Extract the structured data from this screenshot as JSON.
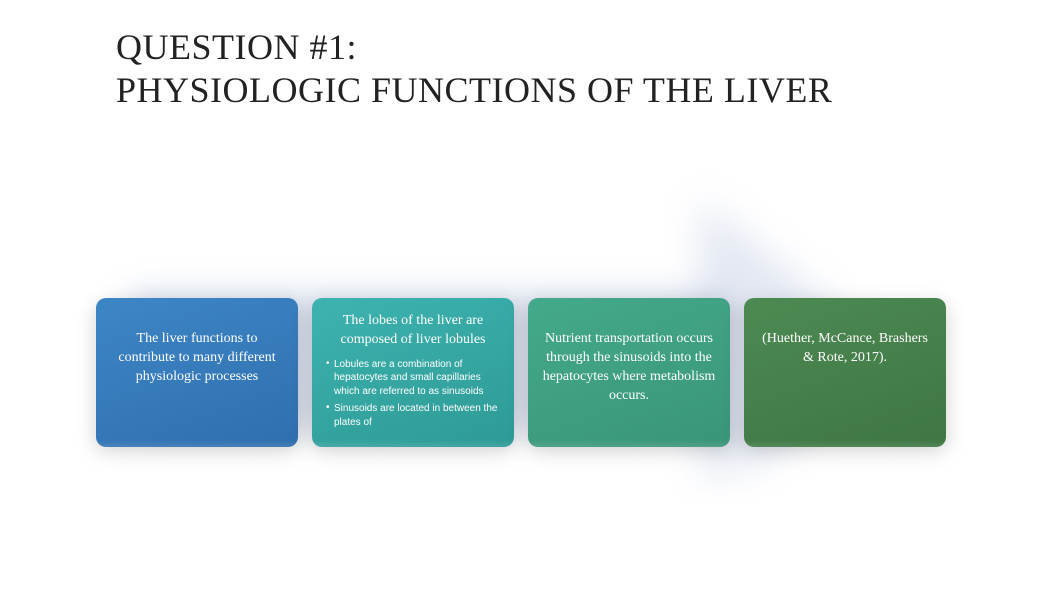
{
  "title_line1": "QUESTION #1:",
  "title_line2": "PHYSIOLOGIC FUNCTIONS OF THE LIVER",
  "arrow_color": "#b9c5de",
  "cards": [
    {
      "text": "The liver functions to contribute to many different physiologic processes",
      "bg1": "#3d86c6",
      "bg2": "#2f6fae",
      "bullets": [],
      "centered": true
    },
    {
      "text": "The lobes of the liver are composed of liver lobules",
      "bg1": "#3db3b0",
      "bg2": "#2e9a95",
      "bullets": [
        "Lobules are a combination of hepatocytes and small capillaries which are referred to as sinusoids",
        "Sinusoids are located in between the plates of"
      ],
      "centered": false
    },
    {
      "text": "Nutrient transportation occurs through the sinusoids into the hepatocytes where metabolism occurs.",
      "bg1": "#44a98b",
      "bg2": "#3a9578",
      "bullets": [],
      "centered": true
    },
    {
      "text": "(Huether, McCance, Brashers & Rote, 2017).",
      "bg1": "#4d8a52",
      "bg2": "#3e7644",
      "bullets": [],
      "centered": true
    }
  ]
}
